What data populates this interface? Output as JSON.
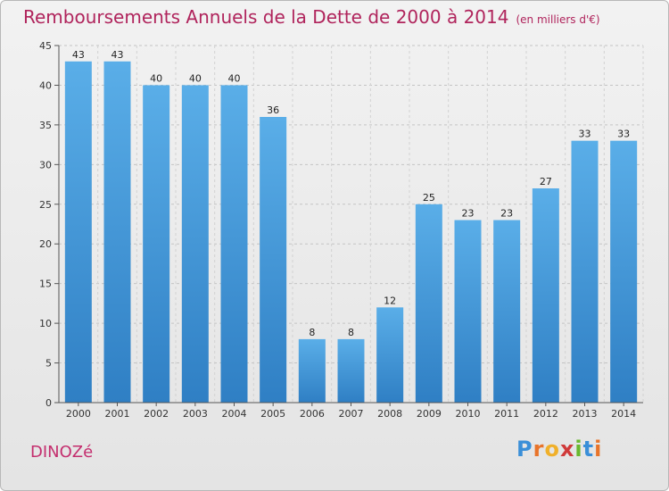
{
  "chart_data": {
    "type": "bar",
    "title": "Remboursements Annuels de la Dette de 2000 à 2014",
    "subtitle": "(en milliers d'€)",
    "categories": [
      "2000",
      "2001",
      "2002",
      "2003",
      "2004",
      "2005",
      "2006",
      "2007",
      "2008",
      "2009",
      "2010",
      "2011",
      "2012",
      "2013",
      "2014"
    ],
    "values": [
      43,
      43,
      40,
      40,
      40,
      36,
      8,
      8,
      12,
      25,
      23,
      23,
      27,
      33,
      33
    ],
    "ylim": [
      0,
      45
    ],
    "yticks": [
      0,
      5,
      10,
      15,
      20,
      25,
      30,
      35,
      40,
      45
    ],
    "xlabel": "",
    "ylabel": "",
    "grid": true,
    "bar_color": "#4a9fe0"
  },
  "commune": "DINOZé",
  "logo": {
    "letters": [
      "P",
      "r",
      "o",
      "x",
      "i",
      "t",
      "i"
    ],
    "colors": [
      "#3a8fd8",
      "#e8742a",
      "#f0b02a",
      "#d03a3a",
      "#6ab82e",
      "#3a8fd8",
      "#e8742a"
    ]
  }
}
